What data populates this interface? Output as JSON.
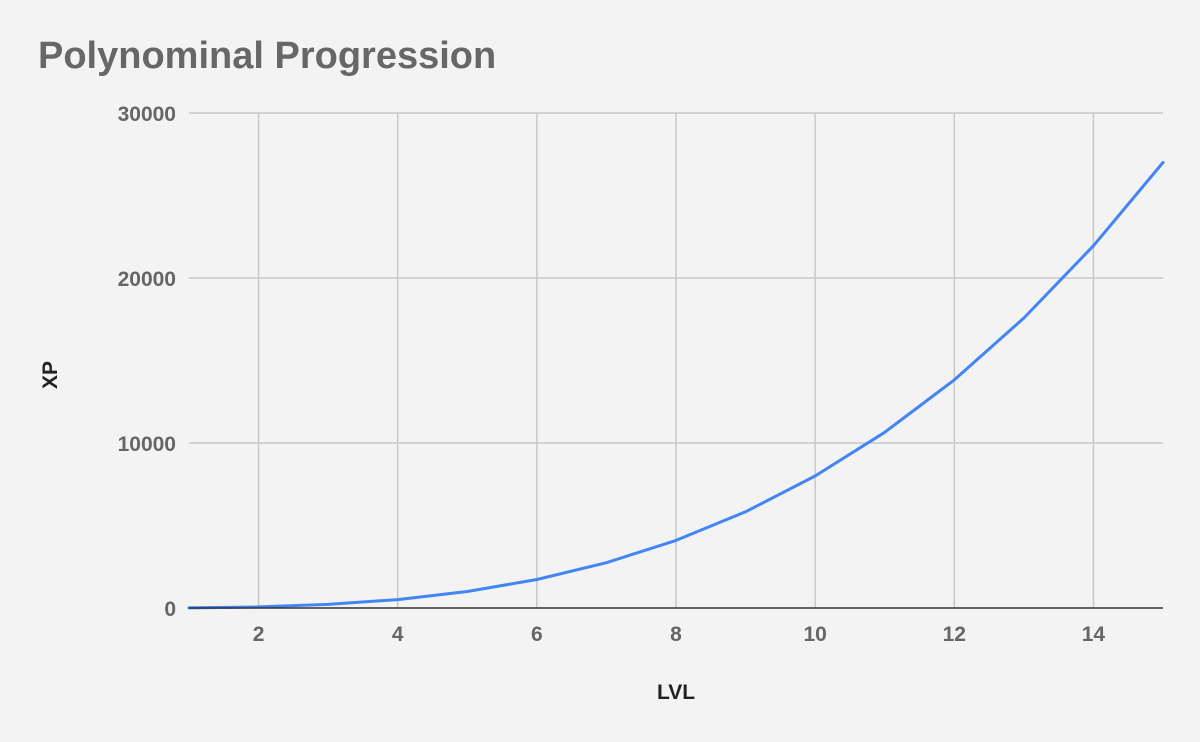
{
  "chart_data": {
    "type": "line",
    "title": "Polynominal Progression",
    "xlabel": "LVL",
    "ylabel": "XP",
    "xlim": [
      1,
      15
    ],
    "ylim": [
      0,
      30000
    ],
    "x_ticks": [
      2,
      4,
      6,
      8,
      10,
      12,
      14
    ],
    "y_ticks": [
      0,
      10000,
      20000,
      30000
    ],
    "grid": true,
    "legend": "none",
    "series": [
      {
        "color": "#4285f4",
        "x": [
          1,
          2,
          3,
          4,
          5,
          6,
          7,
          8,
          9,
          10,
          11,
          12,
          13,
          14,
          15
        ],
        "y": [
          8,
          64,
          216,
          512,
          1000,
          1728,
          2744,
          4096,
          5832,
          8000,
          10648,
          13824,
          17576,
          21952,
          27000
        ]
      }
    ]
  }
}
